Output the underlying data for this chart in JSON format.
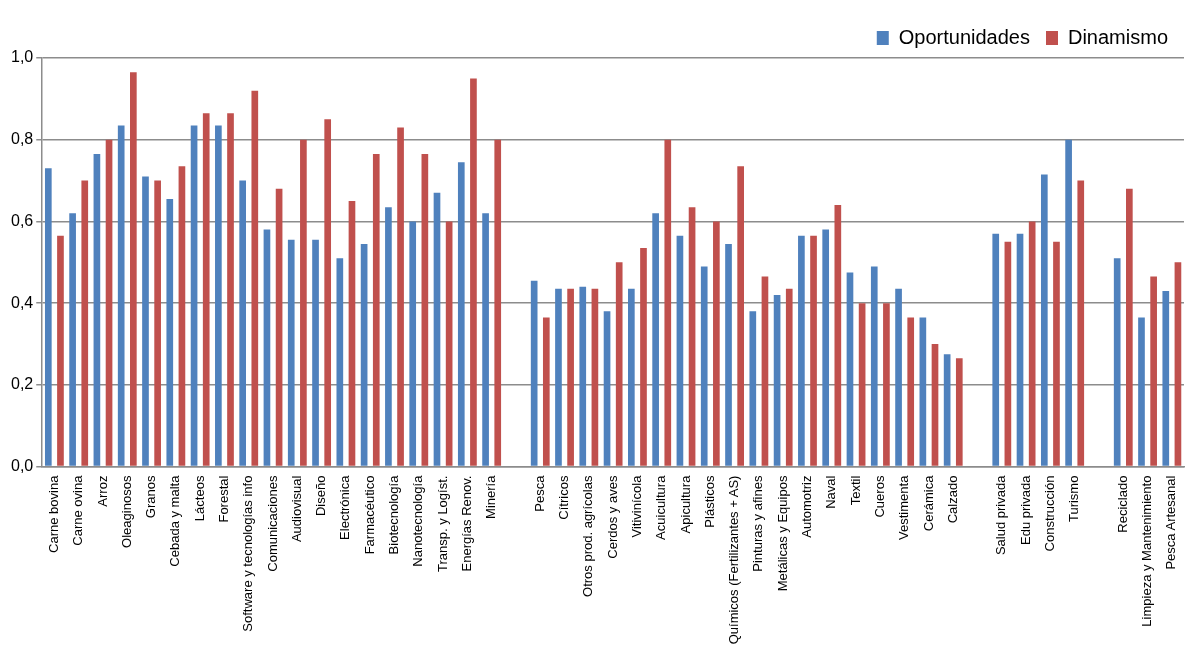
{
  "chart_data": {
    "type": "bar",
    "categories": [
      "Carne bovina",
      "Carne ovina",
      "Arroz",
      "Oleaginosos",
      "Granos",
      "Cebada y malta",
      "Lácteos",
      "Forestal",
      "Software y tecnologías info",
      "Comunicaciones",
      "Audiovisual",
      "Diseño",
      "Electrónica",
      "Farmacéutico",
      "Biotecnología",
      "Nanotecnología",
      "Transp. y Logíst.",
      "Energías Renov.",
      "Minería",
      null,
      "Pesca",
      "Cítricos",
      "Otros prod. agrícolas",
      "Cerdos y aves",
      "Vitivinícola",
      "Acuicultura",
      "Apicultura",
      "Plásticos",
      "Químicos (Fertilizantes + AS)",
      "Pinturas y afines",
      "Metálicas y Equipos",
      "Automotriz",
      "Naval",
      "Textil",
      "Cueros",
      "Vestimenta",
      "Cerámica",
      "Calzado",
      null,
      "Salud privada",
      "Edu privada",
      "Construcción",
      "Turismo",
      null,
      "Reciclado",
      "Limpieza y Mantenimiento",
      "Pesca Artesanal"
    ],
    "series": [
      {
        "name": "Oportunidades",
        "color": "#4f81bd",
        "values": [
          0.73,
          0.62,
          0.765,
          0.835,
          0.71,
          0.655,
          0.835,
          0.835,
          0.7,
          0.58,
          0.555,
          0.555,
          0.51,
          0.545,
          0.635,
          0.6,
          0.67,
          0.745,
          0.62,
          null,
          0.455,
          0.435,
          0.44,
          0.38,
          0.435,
          0.62,
          0.565,
          0.49,
          0.545,
          0.38,
          0.42,
          0.565,
          0.58,
          0.475,
          0.49,
          0.435,
          0.365,
          0.275,
          null,
          0.57,
          0.57,
          0.715,
          0.8,
          null,
          0.51,
          0.365,
          0.43
        ]
      },
      {
        "name": "Dinamismo",
        "color": "#c0504d",
        "values": [
          0.565,
          0.7,
          0.8,
          0.965,
          0.7,
          0.735,
          0.865,
          0.865,
          0.92,
          0.68,
          0.8,
          0.85,
          0.65,
          0.765,
          0.83,
          0.765,
          0.6,
          0.95,
          0.8,
          null,
          0.365,
          0.435,
          0.435,
          0.5,
          0.535,
          0.8,
          0.635,
          0.6,
          0.735,
          0.465,
          0.435,
          0.565,
          0.64,
          0.4,
          0.4,
          0.365,
          0.3,
          0.265,
          null,
          0.55,
          0.6,
          0.55,
          0.7,
          null,
          0.68,
          0.465,
          0.5
        ]
      }
    ],
    "ylim": [
      0,
      1
    ],
    "yticks": [
      {
        "value": 0,
        "label": "0,0"
      },
      {
        "value": 0.2,
        "label": "0,2"
      },
      {
        "value": 0.4,
        "label": "0,4"
      },
      {
        "value": 0.6,
        "label": "0,6"
      },
      {
        "value": 0.8,
        "label": "0,8"
      },
      {
        "value": 1,
        "label": "1,0"
      }
    ],
    "grid": "y",
    "legend": "top right"
  }
}
